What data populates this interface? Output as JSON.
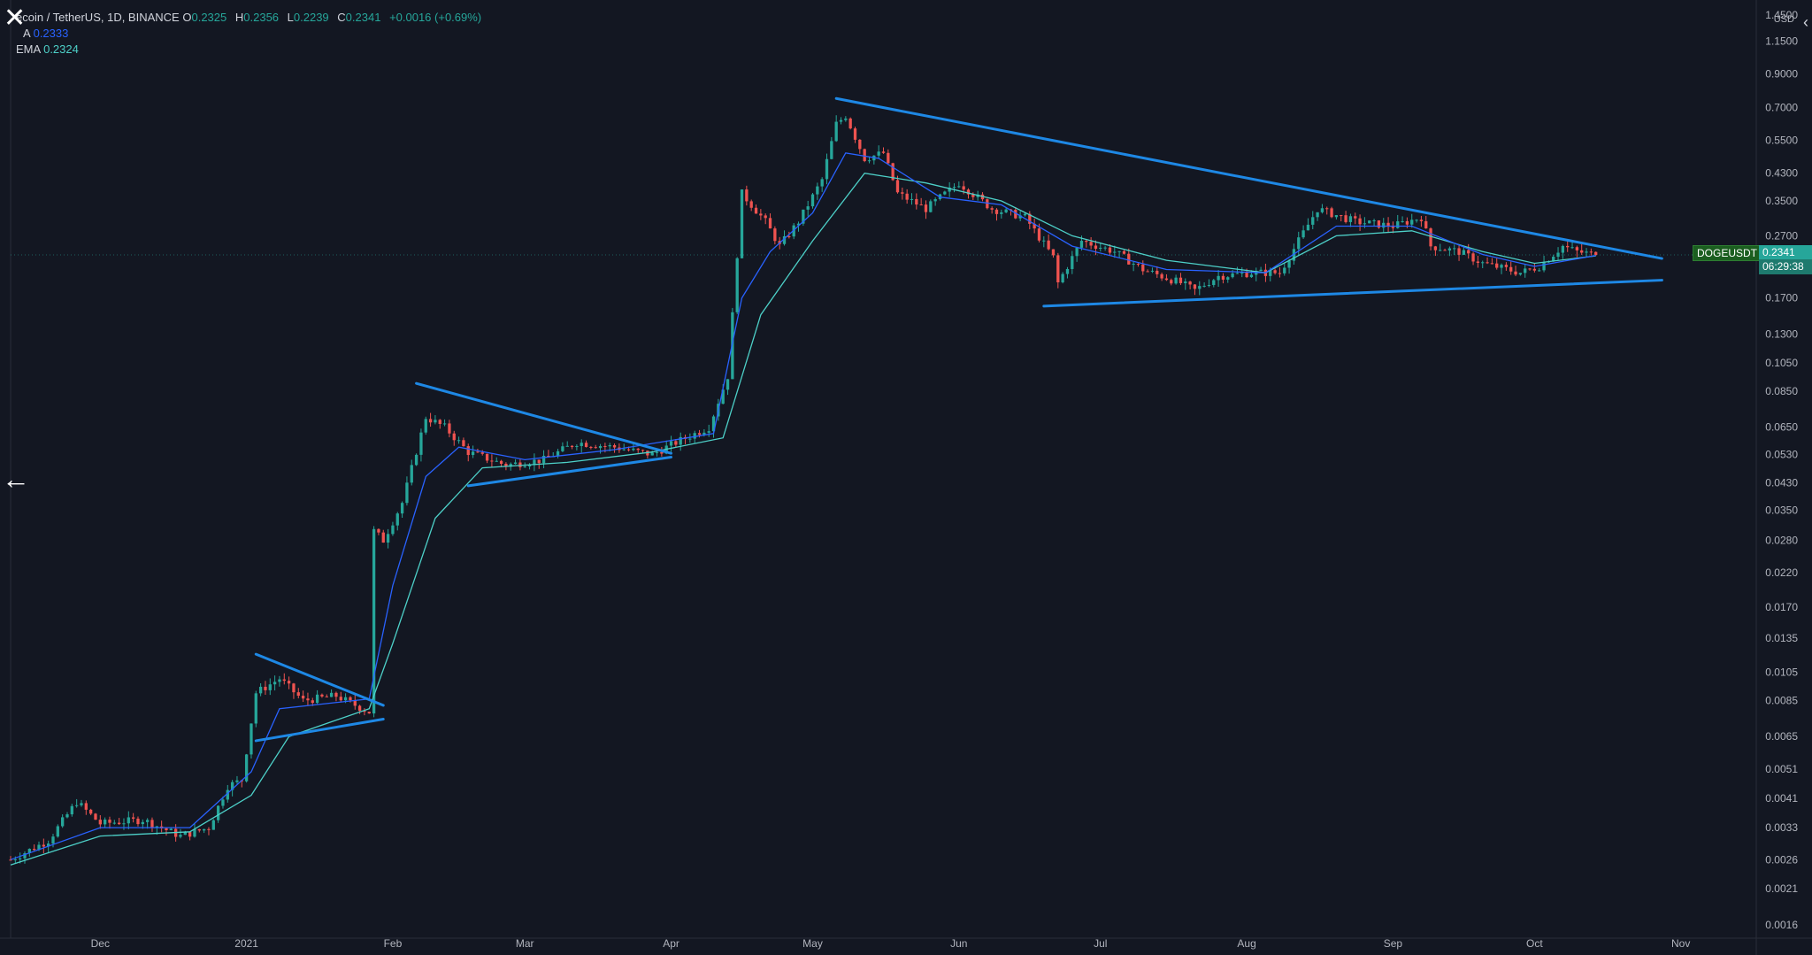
{
  "header": {
    "title": "ecoin / TetherUS, 1D, BINANCE",
    "open_label": "O",
    "open": "0.2325",
    "high_label": "H",
    "high": "0.2356",
    "low_label": "L",
    "low": "0.2239",
    "close_label": "C",
    "close": "0.2341",
    "change": "+0.0016 (+0.69%)",
    "ema1_label": "A",
    "ema1_value": "0.2333",
    "ema2_label": "EMA",
    "ema2_value": "0.2324"
  },
  "price_axis": {
    "unit": "USD",
    "top_label": "1.4500"
  },
  "symbol_tag": "DOGEUSDT",
  "last_price_tag": "0.2341",
  "countdown": "06:29:38",
  "colors": {
    "background": "#131722",
    "up": "#26a69a",
    "down": "#ef5350",
    "trendline": "#1e88e5",
    "ema_fast": "#2962ff",
    "ema_slow": "#4dd0c8",
    "axis_text": "#b2b5be"
  },
  "icons": {
    "close": "close-icon",
    "back": "arrow-left-icon",
    "collapse": "chevron-left-icon"
  },
  "chart_data": {
    "type": "candlestick",
    "scale": "log",
    "grid": false,
    "ylim": [
      0.00145,
      1.5
    ],
    "xlim": [
      "2020-11-12",
      "2021-11-17"
    ],
    "x_ticks": [
      {
        "date": "2020-12-01",
        "label": "Dec"
      },
      {
        "date": "2021-01-01",
        "label": "2021"
      },
      {
        "date": "2021-02-01",
        "label": "Feb"
      },
      {
        "date": "2021-03-01",
        "label": "Mar"
      },
      {
        "date": "2021-04-01",
        "label": "Apr"
      },
      {
        "date": "2021-05-01",
        "label": "May"
      },
      {
        "date": "2021-06-01",
        "label": "Jun"
      },
      {
        "date": "2021-07-01",
        "label": "Jul"
      },
      {
        "date": "2021-08-01",
        "label": "Aug"
      },
      {
        "date": "2021-09-01",
        "label": "Sep"
      },
      {
        "date": "2021-10-01",
        "label": "Oct"
      },
      {
        "date": "2021-11-01",
        "label": "Nov"
      }
    ],
    "y_ticks": [
      {
        "value": 1.15,
        "label": "1.1500"
      },
      {
        "value": 0.9,
        "label": "0.9000"
      },
      {
        "value": 0.7,
        "label": "0.7000"
      },
      {
        "value": 0.55,
        "label": "0.5500"
      },
      {
        "value": 0.43,
        "label": "0.4300"
      },
      {
        "value": 0.35,
        "label": "0.3500"
      },
      {
        "value": 0.27,
        "label": "0.2700"
      },
      {
        "value": 0.17,
        "label": "0.1700"
      },
      {
        "value": 0.13,
        "label": "0.1300"
      },
      {
        "value": 0.105,
        "label": "0.1050"
      },
      {
        "value": 0.085,
        "label": "0.0850"
      },
      {
        "value": 0.065,
        "label": "0.0650"
      },
      {
        "value": 0.053,
        "label": "0.0530"
      },
      {
        "value": 0.043,
        "label": "0.0430"
      },
      {
        "value": 0.035,
        "label": "0.0350"
      },
      {
        "value": 0.028,
        "label": "0.0280"
      },
      {
        "value": 0.022,
        "label": "0.0220"
      },
      {
        "value": 0.017,
        "label": "0.0170"
      },
      {
        "value": 0.0135,
        "label": "0.0135"
      },
      {
        "value": 0.0105,
        "label": "0.0105"
      },
      {
        "value": 0.0085,
        "label": "0.0085"
      },
      {
        "value": 0.0065,
        "label": "0.0065"
      },
      {
        "value": 0.0051,
        "label": "0.0051"
      },
      {
        "value": 0.0041,
        "label": "0.0041"
      },
      {
        "value": 0.0033,
        "label": "0.0033"
      },
      {
        "value": 0.0026,
        "label": "0.0026"
      },
      {
        "value": 0.0021,
        "label": "0.0021"
      },
      {
        "value": 0.0016,
        "label": "0.0016"
      }
    ],
    "price_path": [
      [
        "2020-11-12",
        0.0026
      ],
      [
        "2020-11-20",
        0.003
      ],
      [
        "2020-11-26",
        0.004
      ],
      [
        "2020-12-01",
        0.0034
      ],
      [
        "2020-12-10",
        0.0035
      ],
      [
        "2020-12-18",
        0.0031
      ],
      [
        "2020-12-24",
        0.0033
      ],
      [
        "2020-12-28",
        0.0045
      ],
      [
        "2020-12-31",
        0.0047
      ],
      [
        "2021-01-03",
        0.009
      ],
      [
        "2021-01-08",
        0.01
      ],
      [
        "2021-01-13",
        0.0085
      ],
      [
        "2021-01-20",
        0.0088
      ],
      [
        "2021-01-27",
        0.0078
      ],
      [
        "2021-01-28",
        0.03
      ],
      [
        "2021-01-30",
        0.028
      ],
      [
        "2021-02-03",
        0.037
      ],
      [
        "2021-02-08",
        0.07
      ],
      [
        "2021-02-12",
        0.065
      ],
      [
        "2021-02-17",
        0.054
      ],
      [
        "2021-02-25",
        0.049
      ],
      [
        "2021-03-05",
        0.051
      ],
      [
        "2021-03-12",
        0.058
      ],
      [
        "2021-03-20",
        0.056
      ],
      [
        "2021-03-28",
        0.053
      ],
      [
        "2021-04-01",
        0.057
      ],
      [
        "2021-04-09",
        0.065
      ],
      [
        "2021-04-13",
        0.095
      ],
      [
        "2021-04-16",
        0.37
      ],
      [
        "2021-04-21",
        0.3
      ],
      [
        "2021-04-24",
        0.25
      ],
      [
        "2021-04-28",
        0.3
      ],
      [
        "2021-05-03",
        0.41
      ],
      [
        "2021-05-06",
        0.62
      ],
      [
        "2021-05-08",
        0.66
      ],
      [
        "2021-05-12",
        0.48
      ],
      [
        "2021-05-16",
        0.5
      ],
      [
        "2021-05-19",
        0.37
      ],
      [
        "2021-05-25",
        0.33
      ],
      [
        "2021-06-01",
        0.4
      ],
      [
        "2021-06-08",
        0.33
      ],
      [
        "2021-06-15",
        0.31
      ],
      [
        "2021-06-21",
        0.23
      ],
      [
        "2021-06-22",
        0.19
      ],
      [
        "2021-06-27",
        0.26
      ],
      [
        "2021-07-04",
        0.24
      ],
      [
        "2021-07-10",
        0.21
      ],
      [
        "2021-07-18",
        0.19
      ],
      [
        "2021-07-21",
        0.18
      ],
      [
        "2021-07-26",
        0.2
      ],
      [
        "2021-08-02",
        0.205
      ],
      [
        "2021-08-08",
        0.205
      ],
      [
        "2021-08-12",
        0.26
      ],
      [
        "2021-08-16",
        0.33
      ],
      [
        "2021-08-24",
        0.3
      ],
      [
        "2021-09-01",
        0.29
      ],
      [
        "2021-09-07",
        0.31
      ],
      [
        "2021-09-09",
        0.25
      ],
      [
        "2021-09-15",
        0.24
      ],
      [
        "2021-09-20",
        0.22
      ],
      [
        "2021-09-28",
        0.205
      ],
      [
        "2021-10-02",
        0.215
      ],
      [
        "2021-10-07",
        0.25
      ],
      [
        "2021-10-10",
        0.24
      ],
      [
        "2021-10-14",
        0.2341
      ]
    ],
    "ema_fast": [
      [
        "2020-11-12",
        0.0026
      ],
      [
        "2020-12-01",
        0.0033
      ],
      [
        "2020-12-20",
        0.0033
      ],
      [
        "2021-01-02",
        0.005
      ],
      [
        "2021-01-08",
        0.008
      ],
      [
        "2021-01-27",
        0.0086
      ],
      [
        "2021-02-01",
        0.02
      ],
      [
        "2021-02-08",
        0.045
      ],
      [
        "2021-02-15",
        0.056
      ],
      [
        "2021-03-01",
        0.051
      ],
      [
        "2021-03-20",
        0.055
      ],
      [
        "2021-04-10",
        0.062
      ],
      [
        "2021-04-16",
        0.17
      ],
      [
        "2021-04-22",
        0.24
      ],
      [
        "2021-05-01",
        0.32
      ],
      [
        "2021-05-08",
        0.5
      ],
      [
        "2021-05-15",
        0.48
      ],
      [
        "2021-05-28",
        0.36
      ],
      [
        "2021-06-10",
        0.34
      ],
      [
        "2021-06-25",
        0.25
      ],
      [
        "2021-07-15",
        0.21
      ],
      [
        "2021-08-05",
        0.205
      ],
      [
        "2021-08-20",
        0.29
      ],
      [
        "2021-09-05",
        0.29
      ],
      [
        "2021-09-20",
        0.235
      ],
      [
        "2021-10-01",
        0.215
      ],
      [
        "2021-10-14",
        0.2333
      ]
    ],
    "ema_slow": [
      [
        "2020-11-12",
        0.0025
      ],
      [
        "2020-12-01",
        0.0031
      ],
      [
        "2020-12-20",
        0.0032
      ],
      [
        "2021-01-02",
        0.0042
      ],
      [
        "2021-01-10",
        0.0065
      ],
      [
        "2021-01-27",
        0.008
      ],
      [
        "2021-02-01",
        0.013
      ],
      [
        "2021-02-10",
        0.033
      ],
      [
        "2021-02-20",
        0.048
      ],
      [
        "2021-03-10",
        0.05
      ],
      [
        "2021-03-28",
        0.054
      ],
      [
        "2021-04-12",
        0.06
      ],
      [
        "2021-04-20",
        0.15
      ],
      [
        "2021-05-01",
        0.26
      ],
      [
        "2021-05-12",
        0.43
      ],
      [
        "2021-05-25",
        0.4
      ],
      [
        "2021-06-10",
        0.35
      ],
      [
        "2021-06-25",
        0.27
      ],
      [
        "2021-07-15",
        0.225
      ],
      [
        "2021-08-05",
        0.205
      ],
      [
        "2021-08-20",
        0.27
      ],
      [
        "2021-09-05",
        0.28
      ],
      [
        "2021-09-20",
        0.24
      ],
      [
        "2021-10-01",
        0.22
      ],
      [
        "2021-10-14",
        0.2324
      ]
    ],
    "trendlines": [
      {
        "from": [
          "2021-01-03",
          0.012
        ],
        "to": [
          "2021-01-30",
          0.0082
        ]
      },
      {
        "from": [
          "2021-01-03",
          0.0063
        ],
        "to": [
          "2021-01-30",
          0.0074
        ]
      },
      {
        "from": [
          "2021-02-06",
          0.09
        ],
        "to": [
          "2021-04-01",
          0.0535
        ]
      },
      {
        "from": [
          "2021-02-17",
          0.042
        ],
        "to": [
          "2021-04-01",
          0.052
        ]
      },
      {
        "from": [
          "2021-05-06",
          0.75
        ],
        "to": [
          "2021-10-28",
          0.228
        ]
      },
      {
        "from": [
          "2021-06-19",
          0.16
        ],
        "to": [
          "2021-10-28",
          0.194
        ]
      }
    ]
  }
}
